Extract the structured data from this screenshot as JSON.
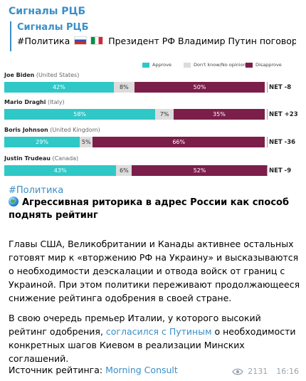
{
  "channel": {
    "name": "Сигналы РЦБ"
  },
  "reply": {
    "title": "Сигналы РЦБ",
    "text_prefix": "#Политика",
    "text_suffix": "Президент РФ Владимир Путин поговорил ..."
  },
  "legend": {
    "approve": "Approve",
    "dontknow": "Don't know/No opinion",
    "disapprove": "Disapprove"
  },
  "colors": {
    "approve": "#30c7c7",
    "dontknow": "#dcdcdc",
    "disapprove": "#7c1e4a",
    "link": "#3a8fc7"
  },
  "chart_data": {
    "type": "bar",
    "stacked": true,
    "orientation": "horizontal",
    "categories": [
      "Joe Biden",
      "Mario Draghi",
      "Boris Johnson",
      "Justin Trudeau"
    ],
    "countries": [
      "(United States)",
      "(Italy)",
      "(United Kingdom)",
      "(Canada)"
    ],
    "series": [
      {
        "name": "Approve",
        "values": [
          42,
          58,
          29,
          43
        ],
        "labels": [
          "42%",
          "58%",
          "29%",
          "43%"
        ]
      },
      {
        "name": "Don't know/No opinion",
        "values": [
          8,
          7,
          5,
          6
        ],
        "labels": [
          "8%",
          "7%",
          "5%",
          "6%"
        ]
      },
      {
        "name": "Disapprove",
        "values": [
          50,
          35,
          66,
          52
        ],
        "labels": [
          "50%",
          "35%",
          "66%",
          "52%"
        ]
      }
    ],
    "net": [
      "NET -8",
      "NET +23",
      "NET -36",
      "NET -9"
    ]
  },
  "post": {
    "tag": "#Политика",
    "headline": "Агрессивная риторика в адрес России как способ поднять рейтинг",
    "para1": "Главы США, Великобритании и Канады активнее остальных готовят мир к «вторжению РФ на Украину» и высказываются о необходимости деэскалации и отвода войск от границ с Украиной. При этом политики переживают продолжающееся снижение рейтинга одобрения в своей стране.",
    "para2_before": "В свою очередь премьер Италии, у которого высокий рейтинг одобрения, ",
    "para2_link": "согласился с Путиным",
    "para2_after": " о необходимости конкретных шагов Киевом в реализации Минских соглашений.",
    "source_label": "Источник рейтинга: ",
    "source_link": "Morning Consult"
  },
  "meta": {
    "views": "2131",
    "time": "16:16"
  }
}
